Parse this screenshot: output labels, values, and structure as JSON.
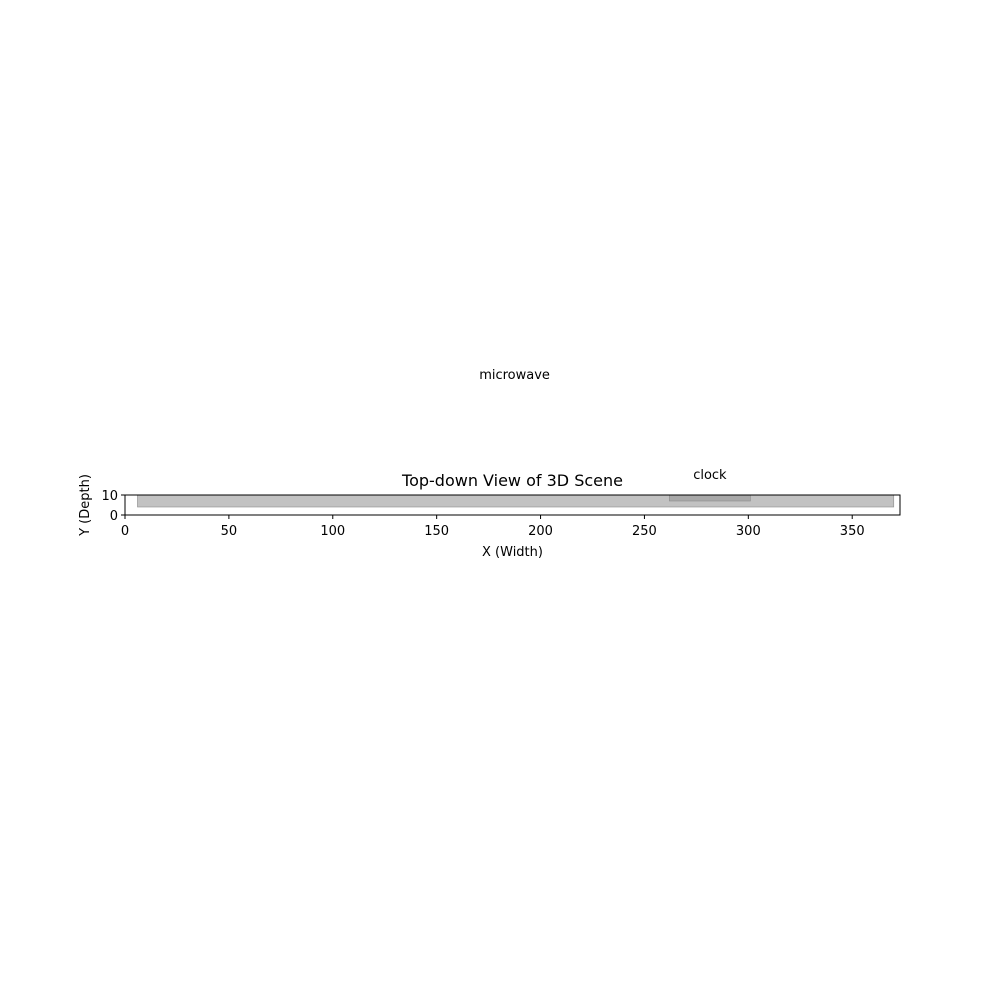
{
  "chart_data": {
    "type": "bar",
    "title": "Top-down View of 3D Scene",
    "xlabel": "X (Width)",
    "ylabel": "Y (Depth)",
    "xlim": [
      0,
      373
    ],
    "ylim": [
      0,
      10
    ],
    "xticks": [
      0,
      50,
      100,
      150,
      200,
      250,
      300,
      350
    ],
    "yticks": [
      0,
      10
    ],
    "grid": false,
    "objects": [
      {
        "name": "microwave",
        "x_range": [
          6,
          370
        ],
        "y_range": [
          4,
          10
        ],
        "label_position": [
          187.5,
          70
        ],
        "color": "#bfbfbf"
      },
      {
        "name": "clock",
        "x_range": [
          262,
          301
        ],
        "y_range": [
          7,
          10
        ],
        "label_position": [
          281.5,
          20
        ],
        "color": "#a6a6a6"
      }
    ]
  }
}
